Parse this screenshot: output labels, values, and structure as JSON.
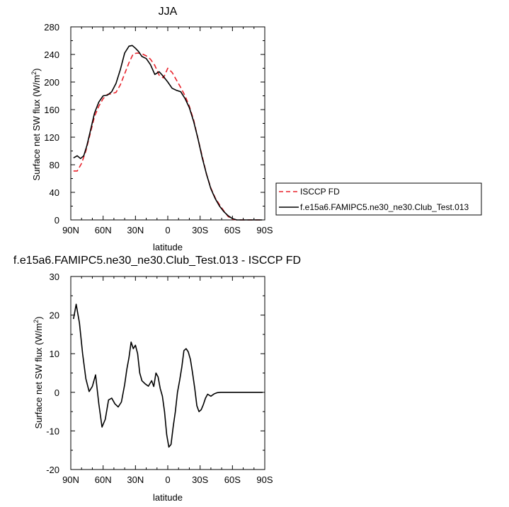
{
  "chart_data": [
    {
      "type": "line",
      "title": "JJA",
      "xlabel": "latitude",
      "ylabel": "Surface net SW flux (W/m2)",
      "ylabel_main": "Surface net SW flux (W/m",
      "ylabel_sup": "2",
      "ylabel_end": ")",
      "xlim": [
        90,
        -90
      ],
      "ylim": [
        0,
        280
      ],
      "xticks": [
        90,
        60,
        30,
        0,
        -30,
        -60,
        -90
      ],
      "xtick_labels": [
        "90N",
        "60N",
        "30N",
        "0",
        "30S",
        "60S",
        "90S"
      ],
      "yticks": [
        0,
        40,
        80,
        120,
        160,
        200,
        240,
        280
      ],
      "ytick_labels": [
        "0",
        "40",
        "80",
        "120",
        "160",
        "200",
        "240",
        "280"
      ],
      "legend": "right",
      "series": [
        {
          "name": "ISCCP FD",
          "color": "#e8212a",
          "dash": true,
          "x": [
            87.5,
            84,
            80,
            76,
            72,
            68,
            64,
            60,
            56,
            52,
            48,
            44,
            40,
            36,
            32,
            28,
            24,
            20,
            16,
            12,
            8,
            4,
            0,
            -4,
            -8,
            -12,
            -16,
            -20,
            -24,
            -28,
            -32,
            -36,
            -40,
            -44,
            -48,
            -52,
            -56,
            -60,
            -64,
            -68,
            -72,
            -76,
            -80,
            -84,
            -87.5
          ],
          "y": [
            71,
            71,
            82,
            100,
            125,
            150,
            165,
            176,
            182,
            183,
            185,
            196,
            212,
            228,
            241,
            242,
            241,
            238,
            233,
            224,
            210,
            206,
            220,
            214,
            203,
            192,
            180,
            165,
            145,
            118,
            92,
            66,
            46,
            32,
            22,
            13,
            5,
            1,
            0,
            0,
            0,
            0,
            0,
            0,
            0
          ]
        },
        {
          "name": "f.e15a6.FAMIPC5.ne30_ne30.Club_Test.013",
          "color": "#000000",
          "dash": false,
          "x": [
            87.5,
            84,
            81,
            78,
            75,
            72,
            68,
            64,
            60,
            56,
            52,
            48,
            44,
            40,
            36,
            33,
            30,
            27,
            24,
            20,
            16,
            12,
            8,
            4,
            0,
            -4,
            -8,
            -12,
            -16,
            -20,
            -24,
            -28,
            -32,
            -36,
            -40,
            -44,
            -48,
            -52,
            -56,
            -60,
            -64,
            -68,
            -72,
            -76,
            -80,
            -84,
            -87.5
          ],
          "y": [
            90,
            93,
            89,
            93,
            108,
            128,
            155,
            171,
            180,
            181,
            186,
            198,
            218,
            242,
            252,
            253,
            249,
            244,
            237,
            234,
            225,
            211,
            215,
            208,
            200,
            191,
            188,
            186,
            176,
            163,
            143,
            118,
            90,
            66,
            45,
            31,
            20,
            12,
            6,
            2,
            0,
            0,
            0,
            0,
            0,
            0,
            0
          ]
        }
      ]
    },
    {
      "type": "line",
      "title": "f.e15a6.FAMIPC5.ne30_ne30.Club_Test.013 - ISCCP FD",
      "xlabel": "latitude",
      "ylabel": "Surface net SW flux (W/m2)",
      "ylabel_main": "Surface net SW flux (W/m",
      "ylabel_sup": "2",
      "ylabel_end": ")",
      "xlim": [
        90,
        -90
      ],
      "ylim": [
        -20,
        30
      ],
      "xticks": [
        90,
        60,
        30,
        0,
        -30,
        -60,
        -90
      ],
      "xtick_labels": [
        "90N",
        "60N",
        "30N",
        "0",
        "30S",
        "60S",
        "90S"
      ],
      "yticks": [
        -20,
        -10,
        0,
        10,
        20,
        30
      ],
      "ytick_labels": [
        "-20",
        "-10",
        "0",
        "10",
        "20",
        "30"
      ],
      "series": [
        {
          "color": "#000000",
          "dash": false,
          "x": [
            87.5,
            85,
            82,
            79,
            76,
            73,
            70,
            67,
            64,
            61,
            58,
            55,
            52,
            49,
            46,
            43,
            40,
            38,
            36,
            34,
            32,
            30,
            28,
            26,
            24,
            21,
            18,
            15,
            13,
            11,
            9,
            7,
            5,
            3,
            1,
            -1,
            -3,
            -5,
            -7,
            -9,
            -11,
            -13,
            -15,
            -17,
            -19,
            -21,
            -23,
            -25,
            -27,
            -29,
            -31,
            -33,
            -35,
            -37,
            -40,
            -43,
            -46,
            -49,
            -53,
            -57,
            -61,
            -65,
            -69,
            -73,
            -77,
            -81,
            -85,
            -88
          ],
          "y": [
            19,
            22.8,
            18,
            10,
            3.5,
            0.2,
            1.5,
            4.5,
            -3,
            -9,
            -7,
            -2,
            -1.5,
            -3,
            -3.8,
            -2.5,
            2,
            6,
            9,
            13,
            11.3,
            12.2,
            10,
            5,
            3,
            2.2,
            1.6,
            3,
            1.5,
            5,
            4,
            1,
            -1,
            -5,
            -11,
            -14.2,
            -13.5,
            -9,
            -5,
            0,
            3,
            6.5,
            10.8,
            11.3,
            10.5,
            8.5,
            5,
            1,
            -3.5,
            -5,
            -4.5,
            -3.2,
            -1.5,
            -0.5,
            -1,
            -0.4,
            -0.1,
            0,
            0,
            0,
            0,
            0,
            0,
            0,
            0,
            0,
            0,
            0
          ]
        }
      ]
    }
  ]
}
